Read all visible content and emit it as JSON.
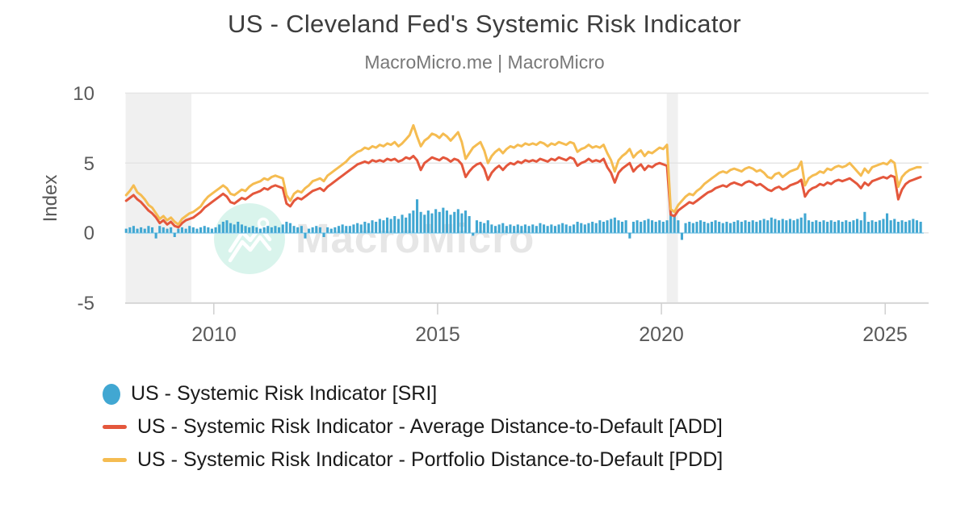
{
  "header": {
    "title": "US - Cleveland Fed's Systemic Risk Indicator",
    "subtitle": "MacroMicro.me | MacroMicro"
  },
  "watermark": {
    "text": "MacroMicro"
  },
  "colors": {
    "sri": "#41a7d2",
    "add": "#e4573c",
    "pdd": "#f5bc51",
    "recession_band": "#f0f0f0",
    "gridline": "#e5e5e5",
    "axis_line": "#d0d0d0",
    "zero_line": "#aedcf0",
    "watermark_circle": "#d9f4ec",
    "watermark_glyph": "#ffffff",
    "watermark_text": "#e6e6e6"
  },
  "chart_data": {
    "type": "mixed",
    "title": "US - Cleveland Fed's Systemic Risk Indicator",
    "subtitle": "MacroMicro.me | MacroMicro",
    "ylabel": "Index",
    "xlabel": "",
    "ylim": [
      -5,
      10
    ],
    "xlim": [
      2008.02,
      2025.97
    ],
    "grid": "horizontal",
    "legend_position": "bottom-left",
    "y_ticks": [
      {
        "value": 10,
        "label": "10"
      },
      {
        "value": 5,
        "label": "5"
      },
      {
        "value": 0,
        "label": "0"
      },
      {
        "value": -5,
        "label": "-5"
      }
    ],
    "x_ticks": [
      {
        "value": 2010,
        "label": "2010"
      },
      {
        "value": 2015,
        "label": "2015"
      },
      {
        "value": 2020,
        "label": "2020"
      },
      {
        "value": 2025,
        "label": "2025"
      }
    ],
    "recession_bands": [
      [
        2008.03,
        2009.5
      ],
      [
        2020.12,
        2020.37
      ]
    ],
    "x_start": 2008.0417,
    "x_step": 0.0833333,
    "series": [
      {
        "name": "US - Systemic Risk Indicator [SRI]",
        "type": "bar",
        "color": "#41a7d2",
        "marker": "circle",
        "values": [
          0.3,
          0.4,
          0.5,
          0.3,
          0.4,
          0.3,
          0.5,
          0.4,
          -0.4,
          0.5,
          0.4,
          0.3,
          0.4,
          -0.3,
          0.3,
          0.4,
          0.3,
          0.5,
          0.4,
          0.3,
          0.4,
          0.5,
          0.4,
          0.3,
          0.4,
          0.6,
          0.8,
          0.9,
          0.7,
          0.6,
          0.8,
          0.6,
          0.5,
          0.4,
          0.5,
          0.4,
          0.3,
          0.4,
          0.5,
          0.4,
          0.5,
          0.4,
          0.6,
          0.8,
          0.7,
          0.5,
          0.4,
          0.5,
          -0.4,
          0.3,
          0.4,
          0.5,
          0.4,
          -0.3,
          0.4,
          0.3,
          0.4,
          0.5,
          0.6,
          0.5,
          0.5,
          0.6,
          0.7,
          0.6,
          0.8,
          0.7,
          0.9,
          0.8,
          1.0,
          0.9,
          1.1,
          1.0,
          1.2,
          1.0,
          1.3,
          1.1,
          1.4,
          1.6,
          2.4,
          1.5,
          1.3,
          1.6,
          1.4,
          1.7,
          1.5,
          1.8,
          1.6,
          1.3,
          1.5,
          1.7,
          1.4,
          1.6,
          1.2,
          -0.2,
          0.9,
          0.8,
          0.7,
          0.9,
          0.6,
          0.5,
          0.6,
          0.7,
          0.5,
          0.6,
          0.5,
          0.6,
          0.5,
          0.6,
          0.5,
          0.6,
          0.5,
          0.7,
          0.6,
          0.5,
          0.6,
          0.5,
          0.6,
          0.7,
          0.6,
          0.5,
          0.6,
          0.8,
          0.7,
          0.6,
          0.7,
          0.8,
          0.7,
          0.9,
          0.8,
          0.9,
          1.0,
          1.1,
          0.9,
          0.8,
          0.9,
          -0.4,
          0.8,
          0.9,
          0.8,
          0.9,
          1.0,
          0.9,
          0.8,
          0.9,
          0.8,
          0.9,
          1.6,
          1.2,
          0.9,
          -0.5,
          0.7,
          0.8,
          0.7,
          0.8,
          0.9,
          0.8,
          0.7,
          0.8,
          0.9,
          0.8,
          0.7,
          0.8,
          0.7,
          0.8,
          0.9,
          0.8,
          0.9,
          0.8,
          0.9,
          0.8,
          0.9,
          1.0,
          0.9,
          1.1,
          1.0,
          0.9,
          1.0,
          0.9,
          1.0,
          0.9,
          1.0,
          1.1,
          1.4,
          0.9,
          0.8,
          0.9,
          0.8,
          0.9,
          0.8,
          0.9,
          0.8,
          0.9,
          0.8,
          0.9,
          0.8,
          0.9,
          1.0,
          0.9,
          1.5,
          0.8,
          0.9,
          0.8,
          0.9,
          1.0,
          1.4,
          0.9,
          1.0,
          0.8,
          0.9,
          0.8,
          0.9,
          1.0,
          0.9,
          0.8
        ]
      },
      {
        "name": "US - Systemic Risk Indicator - Average Distance-to-Default [ADD]",
        "type": "line",
        "color": "#e4573c",
        "marker": "line",
        "values": [
          2.3,
          2.5,
          2.7,
          2.4,
          2.2,
          1.9,
          1.6,
          1.4,
          1.1,
          0.7,
          0.9,
          0.6,
          0.8,
          0.5,
          0.4,
          0.7,
          0.9,
          1.0,
          1.1,
          1.3,
          1.5,
          1.8,
          2.0,
          2.2,
          2.4,
          2.6,
          2.8,
          2.6,
          2.2,
          2.1,
          2.3,
          2.5,
          2.4,
          2.6,
          2.8,
          2.9,
          3.0,
          3.2,
          3.1,
          3.3,
          3.4,
          3.3,
          3.2,
          2.1,
          1.9,
          2.3,
          2.5,
          2.4,
          2.6,
          2.8,
          3.0,
          3.1,
          3.2,
          3.0,
          3.3,
          3.5,
          3.7,
          3.9,
          4.1,
          4.3,
          4.5,
          4.7,
          4.9,
          5.0,
          5.1,
          5.0,
          5.2,
          5.1,
          5.2,
          5.1,
          5.3,
          5.2,
          5.3,
          5.1,
          5.2,
          5.4,
          5.3,
          5.5,
          5.2,
          4.5,
          5.0,
          5.2,
          5.4,
          5.3,
          5.2,
          5.4,
          5.3,
          5.1,
          5.3,
          5.2,
          4.9,
          4.0,
          4.4,
          4.7,
          4.9,
          5.0,
          4.6,
          3.8,
          4.3,
          4.6,
          4.8,
          4.5,
          4.8,
          5.0,
          4.9,
          5.1,
          5.0,
          5.2,
          5.1,
          5.2,
          5.1,
          5.3,
          5.2,
          5.1,
          5.3,
          5.2,
          5.4,
          5.3,
          5.2,
          5.4,
          5.3,
          4.8,
          5.0,
          5.1,
          5.3,
          5.1,
          5.2,
          5.1,
          5.3,
          4.7,
          4.3,
          3.6,
          4.3,
          4.6,
          4.8,
          5.0,
          4.4,
          4.7,
          4.9,
          4.5,
          4.8,
          4.7,
          4.9,
          5.0,
          4.9,
          4.8,
          1.3,
          1.2,
          1.6,
          1.8,
          2.0,
          2.2,
          2.1,
          2.3,
          2.5,
          2.7,
          2.9,
          3.0,
          3.2,
          3.3,
          3.4,
          3.3,
          3.5,
          3.6,
          3.5,
          3.4,
          3.6,
          3.7,
          3.6,
          3.4,
          3.5,
          3.3,
          3.1,
          3.0,
          3.2,
          3.3,
          3.1,
          3.2,
          3.4,
          3.5,
          3.6,
          3.8,
          2.6,
          3.0,
          3.2,
          3.3,
          3.5,
          3.4,
          3.6,
          3.5,
          3.7,
          3.8,
          3.7,
          3.8,
          3.9,
          3.7,
          3.5,
          3.2,
          3.6,
          3.4,
          3.7,
          3.8,
          3.9,
          4.0,
          3.9,
          4.1,
          4.0,
          2.4,
          3.1,
          3.5,
          3.7,
          3.8,
          3.9,
          4.0
        ]
      },
      {
        "name": "US - Systemic Risk Indicator - Portfolio Distance-to-Default [PDD]",
        "type": "line",
        "color": "#f5bc51",
        "marker": "line",
        "values": [
          2.7,
          3.0,
          3.4,
          2.9,
          2.7,
          2.4,
          2.0,
          1.8,
          1.4,
          1.0,
          1.2,
          0.9,
          1.1,
          0.8,
          0.6,
          1.0,
          1.2,
          1.4,
          1.5,
          1.7,
          1.9,
          2.3,
          2.6,
          2.8,
          3.0,
          3.2,
          3.4,
          3.2,
          2.8,
          2.7,
          2.9,
          3.1,
          3.0,
          3.3,
          3.5,
          3.6,
          3.7,
          3.9,
          3.8,
          4.0,
          4.1,
          4.0,
          3.9,
          2.7,
          2.3,
          2.8,
          3.0,
          2.9,
          3.2,
          3.4,
          3.7,
          3.8,
          3.9,
          3.7,
          4.1,
          4.3,
          4.5,
          4.7,
          4.9,
          5.1,
          5.4,
          5.6,
          5.8,
          5.9,
          6.1,
          6.0,
          6.2,
          6.1,
          6.3,
          6.2,
          6.4,
          6.3,
          6.5,
          6.2,
          6.4,
          6.7,
          7.0,
          7.7,
          6.9,
          6.2,
          6.6,
          6.8,
          7.1,
          7.0,
          6.8,
          7.1,
          6.9,
          6.6,
          6.9,
          7.2,
          6.5,
          5.3,
          5.7,
          6.1,
          6.3,
          6.5,
          5.9,
          5.0,
          5.5,
          5.8,
          6.0,
          5.7,
          6.0,
          6.2,
          6.1,
          6.3,
          6.2,
          6.4,
          6.3,
          6.4,
          6.3,
          6.5,
          6.4,
          6.2,
          6.4,
          6.3,
          6.5,
          6.4,
          6.3,
          6.5,
          6.4,
          5.8,
          6.0,
          6.1,
          6.3,
          6.1,
          6.2,
          6.1,
          6.3,
          5.7,
          5.2,
          4.4,
          5.2,
          5.5,
          5.7,
          6.0,
          5.4,
          5.7,
          5.9,
          5.5,
          5.8,
          5.7,
          5.9,
          6.1,
          6.0,
          6.3,
          1.7,
          1.5,
          2.0,
          2.3,
          2.6,
          2.8,
          2.7,
          3.0,
          3.2,
          3.5,
          3.7,
          3.9,
          4.1,
          4.3,
          4.4,
          4.3,
          4.5,
          4.6,
          4.5,
          4.4,
          4.6,
          4.7,
          4.6,
          4.4,
          4.5,
          4.3,
          4.0,
          3.9,
          4.2,
          4.3,
          4.0,
          4.2,
          4.4,
          4.5,
          4.6,
          5.1,
          3.4,
          3.9,
          4.1,
          4.2,
          4.4,
          4.3,
          4.6,
          4.5,
          4.7,
          4.8,
          4.7,
          4.8,
          5.0,
          4.7,
          4.4,
          4.1,
          4.6,
          4.3,
          4.7,
          4.8,
          4.9,
          5.0,
          4.9,
          5.2,
          5.0,
          3.3,
          4.0,
          4.3,
          4.5,
          4.6,
          4.7,
          4.7
        ]
      }
    ]
  },
  "legend": {
    "items": [
      {
        "series_index": 0
      },
      {
        "series_index": 1
      },
      {
        "series_index": 2
      }
    ]
  }
}
